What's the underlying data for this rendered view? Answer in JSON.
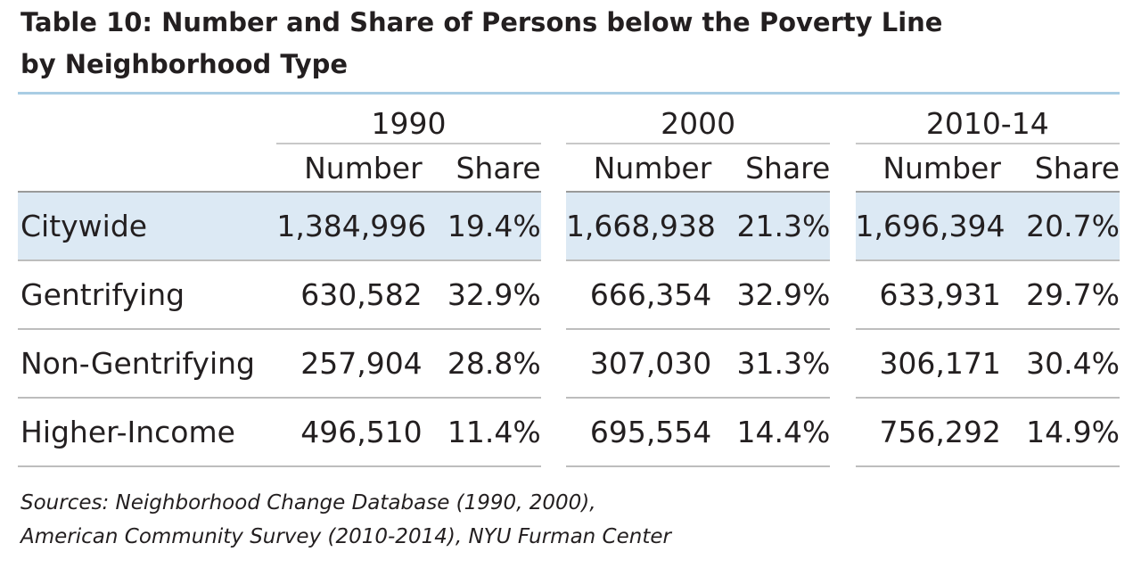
{
  "title": {
    "line1": "Table 10: Number and Share of Persons below the Poverty Line",
    "line2": "by Neighborhood Type"
  },
  "table": {
    "years": [
      "1990",
      "2000",
      "2010-14"
    ],
    "number_header": "Number",
    "share_header": "Share",
    "rows": [
      {
        "label": "Citywide",
        "values": [
          [
            "1,384,996",
            "19.4%"
          ],
          [
            "1,668,938",
            "21.3%"
          ],
          [
            "1,696,394",
            "20.7%"
          ]
        ]
      },
      {
        "label": "Gentrifying",
        "values": [
          [
            "630,582",
            "32.9%"
          ],
          [
            "666,354",
            "32.9%"
          ],
          [
            "633,931",
            "29.7%"
          ]
        ]
      },
      {
        "label": "Non-Gentrifying",
        "values": [
          [
            "257,904",
            "28.8%"
          ],
          [
            "307,030",
            "31.3%"
          ],
          [
            "306,171",
            "30.4%"
          ]
        ]
      },
      {
        "label": "Higher-Income",
        "values": [
          [
            "496,510",
            "11.4%"
          ],
          [
            "695,554",
            "14.4%"
          ],
          [
            "756,292",
            "14.9%"
          ]
        ]
      }
    ],
    "highlight_color": "#dce9f4"
  },
  "source": {
    "line1": "Sources: Neighborhood Change Database (1990, 2000),",
    "line2": "American Community Survey (2010-2014), NYU Furman Center"
  }
}
